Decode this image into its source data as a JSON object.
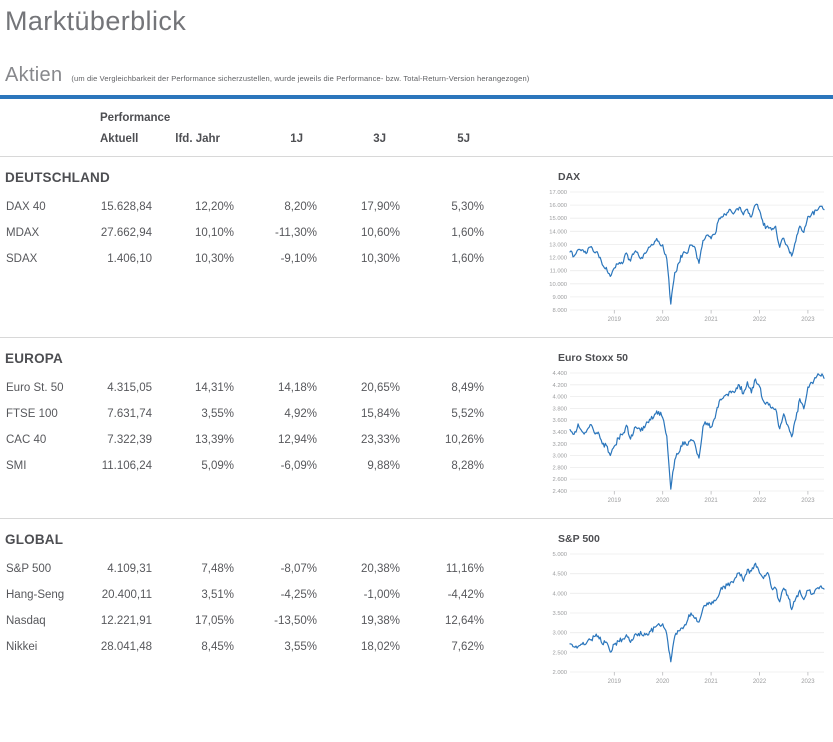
{
  "page": {
    "title": "Marktüberblick",
    "subtitle": "Aktien",
    "subtitle_note": "(um die Vergleichbarkeit der Performance sicherzustellen, wurde jeweils die Performance- bzw. Total-Return-Version herangezogen)"
  },
  "colors": {
    "accent_blue": "#2b76bc",
    "chart_line": "#2b76bc",
    "grid": "#ececec",
    "axis_text": "#9b9c9e",
    "axis_tick": "#b9babc"
  },
  "table": {
    "group_header": "Performance",
    "columns": [
      "Aktuell",
      "lfd. Jahr",
      "1J",
      "3J",
      "5J"
    ],
    "sections": [
      {
        "name": "DEUTSCHLAND",
        "rows": [
          {
            "label": "DAX 40",
            "values": [
              "15.628,84",
              "12,20%",
              "8,20%",
              "17,90%",
              "5,30%"
            ]
          },
          {
            "label": "MDAX",
            "values": [
              "27.662,94",
              "10,10%",
              "-11,30%",
              "10,60%",
              "1,60%"
            ]
          },
          {
            "label": "SDAX",
            "values": [
              "1.406,10",
              "10,30%",
              "-9,10%",
              "10,30%",
              "1,60%"
            ]
          }
        ]
      },
      {
        "name": "EUROPA",
        "rows": [
          {
            "label": "Euro St. 50",
            "values": [
              "4.315,05",
              "14,31%",
              "14,18%",
              "20,65%",
              "8,49%"
            ]
          },
          {
            "label": "FTSE 100",
            "values": [
              "7.631,74",
              "3,55%",
              "4,92%",
              "15,84%",
              "5,52%"
            ]
          },
          {
            "label": "CAC 40",
            "values": [
              "7.322,39",
              "13,39%",
              "12,94%",
              "23,33%",
              "10,26%"
            ]
          },
          {
            "label": "SMI",
            "values": [
              "11.106,24",
              "5,09%",
              "-6,09%",
              "9,88%",
              "8,28%"
            ]
          }
        ]
      },
      {
        "name": "GLOBAL",
        "rows": [
          {
            "label": "S&P 500",
            "values": [
              "4.109,31",
              "7,48%",
              "-8,07%",
              "20,38%",
              "11,16%"
            ]
          },
          {
            "label": "Hang-Seng",
            "values": [
              "20.400,11",
              "3,51%",
              "-4,25%",
              "-1,00%",
              "-4,42%"
            ]
          },
          {
            "label": "Nasdaq",
            "values": [
              "12.221,91",
              "17,05%",
              "-13,50%",
              "19,38%",
              "12,64%"
            ]
          },
          {
            "label": "Nikkei",
            "values": [
              "28.041,48",
              "8,45%",
              "3,55%",
              "18,02%",
              "7,62%"
            ]
          }
        ]
      }
    ]
  },
  "chart_data": [
    {
      "type": "line",
      "title": "DAX",
      "x_unit": "month",
      "x_start": "2018-02",
      "x_end": "2023-05",
      "x_tick_labels": [
        "2019",
        "2020",
        "2021",
        "2022",
        "2023"
      ],
      "x_tick_month_index": [
        11,
        23,
        35,
        47,
        59
      ],
      "ylim": [
        8000,
        17000
      ],
      "y_ticks": [
        8000,
        9000,
        10000,
        11000,
        12000,
        13000,
        14000,
        15000,
        16000,
        17000
      ],
      "y_tick_labels": [
        "8.000",
        "9.000",
        "10.000",
        "11.000",
        "12.000",
        "13.000",
        "14.000",
        "15.000",
        "16.000",
        "17.000"
      ],
      "grid": true,
      "legend": false,
      "values": [
        12435,
        12100,
        12610,
        12600,
        12300,
        12800,
        12400,
        12250,
        11450,
        11250,
        10560,
        11200,
        11500,
        11530,
        12350,
        11730,
        12400,
        12190,
        11940,
        12430,
        12870,
        13240,
        13250,
        12980,
        11890,
        8450,
        10860,
        11590,
        12310,
        12310,
        12950,
        12760,
        11560,
        13290,
        13720,
        13430,
        13790,
        15000,
        15140,
        15420,
        15530,
        15540,
        15840,
        15260,
        15690,
        15100,
        16020,
        15600,
        14460,
        14410,
        14100,
        14390,
        12780,
        13480,
        12840,
        12110,
        13250,
        14400,
        13920,
        15130,
        15370,
        15630,
        15920,
        15660
      ]
    },
    {
      "type": "line",
      "title": "Euro Stoxx 50",
      "x_unit": "month",
      "x_start": "2018-02",
      "x_end": "2023-05",
      "x_tick_labels": [
        "2019",
        "2020",
        "2021",
        "2022",
        "2023"
      ],
      "x_tick_month_index": [
        11,
        23,
        35,
        47,
        59
      ],
      "ylim": [
        2400,
        4400
      ],
      "y_ticks": [
        2400,
        2600,
        2800,
        3000,
        3200,
        3400,
        3600,
        3800,
        4000,
        4200,
        4400
      ],
      "y_tick_labels": [
        "2.400",
        "2.600",
        "2.800",
        "3.000",
        "3.200",
        "3.400",
        "3.600",
        "3.800",
        "4.000",
        "4.200",
        "4.400"
      ],
      "grid": true,
      "legend": false,
      "values": [
        3440,
        3360,
        3537,
        3407,
        3395,
        3525,
        3392,
        3399,
        3197,
        3173,
        3001,
        3159,
        3298,
        3351,
        3515,
        3280,
        3474,
        3467,
        3427,
        3569,
        3604,
        3704,
        3745,
        3641,
        3329,
        2430,
        2928,
        3050,
        3234,
        3174,
        3273,
        3194,
        2958,
        3493,
        3553,
        3481,
        3636,
        3919,
        3975,
        4039,
        4064,
        4089,
        4196,
        4048,
        4251,
        4063,
        4298,
        4175,
        3924,
        3903,
        3803,
        3789,
        3455,
        3708,
        3517,
        3318,
        3618,
        3965,
        3794,
        4163,
        4238,
        4315,
        4359,
        4310
      ]
    },
    {
      "type": "line",
      "title": "S&P 500",
      "x_unit": "month",
      "x_start": "2018-02",
      "x_end": "2023-05",
      "x_tick_labels": [
        "2019",
        "2020",
        "2021",
        "2022",
        "2023"
      ],
      "x_tick_month_index": [
        11,
        23,
        35,
        47,
        59
      ],
      "ylim": [
        2000,
        5000
      ],
      "y_ticks": [
        2000,
        2500,
        3000,
        3500,
        4000,
        4500,
        5000
      ],
      "y_tick_labels": [
        "2.000",
        "2.500",
        "3.000",
        "3.500",
        "4.000",
        "4.500",
        "5.000"
      ],
      "grid": true,
      "legend": false,
      "values": [
        2714,
        2641,
        2648,
        2705,
        2718,
        2816,
        2902,
        2914,
        2712,
        2760,
        2507,
        2704,
        2784,
        2834,
        2946,
        2752,
        2942,
        2980,
        2926,
        2977,
        3038,
        3141,
        3231,
        3226,
        2954,
        2260,
        2912,
        3044,
        3100,
        3271,
        3500,
        3363,
        3270,
        3622,
        3756,
        3714,
        3811,
        3973,
        4181,
        4204,
        4298,
        4395,
        4523,
        4308,
        4605,
        4567,
        4766,
        4516,
        4374,
        4530,
        4132,
        4132,
        3785,
        4130,
        3955,
        3586,
        3872,
        4080,
        3840,
        4077,
        3970,
        4109,
        4169,
        4110
      ]
    }
  ]
}
